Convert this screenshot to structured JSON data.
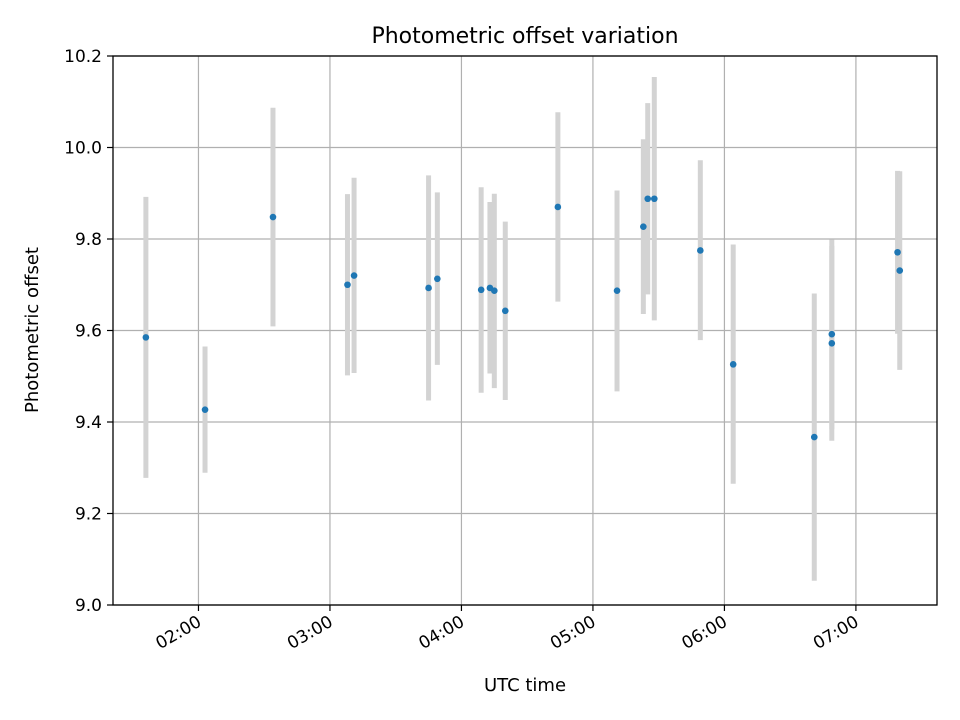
{
  "chart_data": {
    "type": "scatter",
    "title": "Photometric offset variation",
    "xlabel": "UTC time",
    "ylabel": "Photometric offset",
    "x_unit": "UTC time of day",
    "xlim": [
      "01:21",
      "07:37"
    ],
    "ylim": [
      9.0,
      10.2
    ],
    "x_ticks": [
      "02:00",
      "03:00",
      "04:00",
      "05:00",
      "06:00",
      "07:00"
    ],
    "y_ticks": [
      "9.0",
      "9.2",
      "9.4",
      "9.6",
      "9.8",
      "10.0",
      "10.2"
    ],
    "grid": true,
    "legend": "none",
    "colors": {
      "marker": "#1f77b4",
      "errorbar": "#d3d3d3",
      "grid": "#b0b0b0",
      "axes": "#000000"
    },
    "series": [
      {
        "points": [
          {
            "x": "01:36",
            "y": 9.585,
            "ylow": 9.278,
            "yhigh": 9.892
          },
          {
            "x": "02:03",
            "y": 9.427,
            "ylow": 9.289,
            "yhigh": 9.565
          },
          {
            "x": "02:34",
            "y": 9.848,
            "ylow": 9.609,
            "yhigh": 10.087
          },
          {
            "x": "03:08",
            "y": 9.7,
            "ylow": 9.502,
            "yhigh": 9.898
          },
          {
            "x": "03:11",
            "y": 9.72,
            "ylow": 9.507,
            "yhigh": 9.934
          },
          {
            "x": "03:45",
            "y": 9.693,
            "ylow": 9.447,
            "yhigh": 9.939
          },
          {
            "x": "03:49",
            "y": 9.713,
            "ylow": 9.525,
            "yhigh": 9.902
          },
          {
            "x": "04:09",
            "y": 9.689,
            "ylow": 9.464,
            "yhigh": 9.913
          },
          {
            "x": "04:13",
            "y": 9.693,
            "ylow": 9.506,
            "yhigh": 9.881
          },
          {
            "x": "04:15",
            "y": 9.687,
            "ylow": 9.474,
            "yhigh": 9.899
          },
          {
            "x": "04:20",
            "y": 9.643,
            "ylow": 9.448,
            "yhigh": 9.838
          },
          {
            "x": "04:44",
            "y": 9.87,
            "ylow": 9.663,
            "yhigh": 10.077
          },
          {
            "x": "05:11",
            "y": 9.687,
            "ylow": 9.467,
            "yhigh": 9.906
          },
          {
            "x": "05:23",
            "y": 9.827,
            "ylow": 9.636,
            "yhigh": 10.018
          },
          {
            "x": "05:25",
            "y": 9.888,
            "ylow": 9.679,
            "yhigh": 10.097
          },
          {
            "x": "05:28",
            "y": 9.888,
            "ylow": 9.622,
            "yhigh": 10.154
          },
          {
            "x": "05:49",
            "y": 9.775,
            "ylow": 9.579,
            "yhigh": 9.972
          },
          {
            "x": "06:04",
            "y": 9.526,
            "ylow": 9.265,
            "yhigh": 9.788
          },
          {
            "x": "06:41",
            "y": 9.367,
            "ylow": 9.053,
            "yhigh": 9.681
          },
          {
            "x": "06:49",
            "y": 9.592,
            "ylow": 9.384,
            "yhigh": 9.799
          },
          {
            "x": "06:49",
            "y": 9.572,
            "ylow": 9.359,
            "yhigh": 9.785
          },
          {
            "x": "07:19",
            "y": 9.771,
            "ylow": 9.593,
            "yhigh": 9.949
          },
          {
            "x": "07:20",
            "y": 9.731,
            "ylow": 9.514,
            "yhigh": 9.948
          }
        ]
      }
    ]
  }
}
